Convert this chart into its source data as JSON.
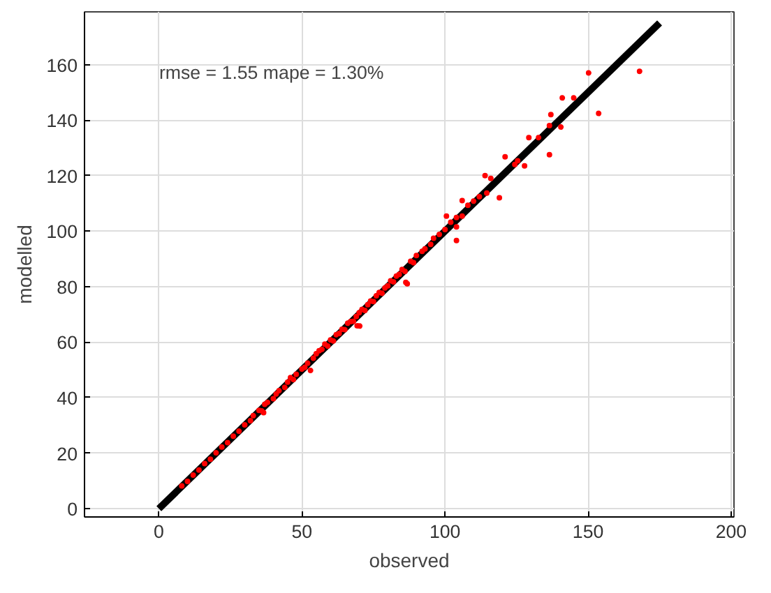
{
  "chart_data": {
    "type": "scatter",
    "xlabel": "observed",
    "ylabel": "modelled",
    "annotations": [
      "rmse = 1.55 mape = 1.30%"
    ],
    "xlim": [
      -26,
      201
    ],
    "ylim": [
      -3,
      179
    ],
    "xticks": [
      0,
      50,
      100,
      150,
      200
    ],
    "yticks": [
      0,
      20,
      40,
      60,
      80,
      100,
      120,
      140,
      160
    ],
    "grid": true,
    "series": [
      {
        "type": "line",
        "color": "#000000",
        "x": [
          0,
          175
        ],
        "values": [
          0,
          175
        ]
      },
      {
        "color": "#ff0000",
        "marker": "circle",
        "x": [
          8,
          10,
          12,
          14,
          16,
          18,
          20,
          22,
          24,
          26,
          28,
          30,
          32,
          33,
          35,
          36,
          37,
          38,
          40,
          41,
          42,
          44,
          45,
          46,
          47,
          48,
          50,
          51,
          52,
          54,
          55,
          56,
          57,
          58,
          59,
          60,
          61,
          62,
          63,
          64,
          65,
          66,
          67,
          68,
          69,
          70,
          71,
          72,
          73,
          74,
          75,
          76,
          77,
          78,
          79,
          80,
          81,
          82,
          83,
          84,
          85,
          86,
          88,
          89,
          90,
          92,
          93,
          95,
          96,
          98,
          100,
          102,
          104,
          106,
          108,
          110,
          112,
          53,
          36.6,
          70.2,
          86.8,
          69.3,
          86.3,
          100.5,
          104,
          104,
          106,
          119,
          114.6,
          116,
          114,
          127.8,
          124.4,
          125.4,
          121,
          136.5,
          129.3,
          132.7,
          140.5,
          136.5,
          137,
          141,
          145,
          153.7,
          168,
          150.2
        ],
        "values": [
          8.2,
          9.8,
          12.1,
          13.9,
          16.2,
          17.8,
          20.1,
          22.2,
          23.8,
          26.1,
          27.9,
          30.2,
          31.7,
          33.5,
          35.4,
          35.2,
          37.6,
          38.3,
          39.6,
          41.3,
          42.5,
          43.7,
          45.6,
          47.2,
          46.5,
          48.4,
          50.3,
          50.9,
          52.4,
          54.2,
          55.8,
          56.9,
          57.4,
          59.3,
          58.6,
          60.8,
          60.4,
          62.7,
          63.1,
          64.6,
          64.5,
          66.8,
          67.4,
          67.5,
          69.2,
          70.6,
          71.8,
          71.4,
          73.5,
          74.8,
          74.6,
          76.7,
          77.9,
          77.6,
          79.5,
          80.3,
          82.1,
          81.7,
          83.8,
          84.4,
          86.2,
          85.5,
          89.1,
          88.6,
          91.2,
          92.7,
          93.6,
          95.2,
          97.4,
          98.8,
          100.6,
          103.2,
          104.9,
          105.4,
          109.3,
          110.8,
          112.4,
          49.8,
          34.6,
          65.8,
          81,
          65.9,
          81.5,
          105.4,
          96.6,
          101.5,
          111,
          112,
          113.7,
          119,
          120,
          123.5,
          124,
          125.3,
          126.8,
          127.5,
          133.7,
          133.7,
          137.5,
          138,
          142,
          148,
          148,
          142.4,
          157.6,
          157
        ]
      }
    ]
  }
}
